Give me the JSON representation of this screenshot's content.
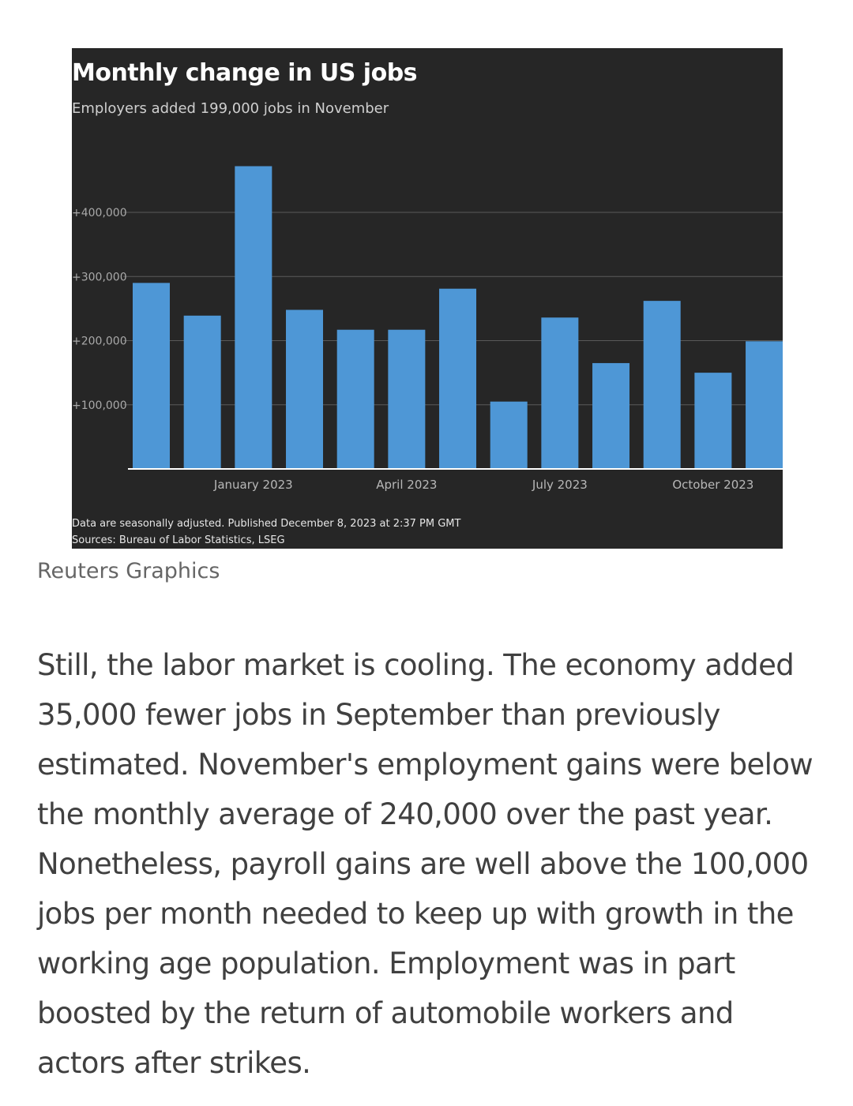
{
  "chart_data": {
    "type": "bar",
    "title": "Monthly change in US jobs",
    "subtitle": "Employers added 199,000 jobs in November",
    "categories": [
      "Nov 2022",
      "Dec 2022",
      "Jan 2023",
      "Feb 2023",
      "Mar 2023",
      "Apr 2023",
      "May 2023",
      "Jun 2023",
      "Jul 2023",
      "Aug 2023",
      "Sep 2023",
      "Oct 2023",
      "Nov 2023"
    ],
    "values": [
      290000,
      239000,
      472000,
      248000,
      217000,
      217000,
      281000,
      105000,
      236000,
      165000,
      262000,
      150000,
      199000
    ],
    "ylim": [
      0,
      480000
    ],
    "y_ticks": [
      {
        "value": 100000,
        "label": "+100,000"
      },
      {
        "value": 200000,
        "label": "+200,000"
      },
      {
        "value": 300000,
        "label": "+300,000"
      },
      {
        "value": 400000,
        "label": "+400,000"
      }
    ],
    "x_ticks": [
      {
        "index": 2,
        "label": "January 2023"
      },
      {
        "index": 5,
        "label": "April 2023"
      },
      {
        "index": 8,
        "label": "July 2023"
      },
      {
        "index": 11,
        "label": "October 2023"
      }
    ],
    "grid": true,
    "colors": {
      "bar": "#4e97d6",
      "background": "#262626",
      "grid": "#5a5a5a",
      "baseline": "#ffffff"
    },
    "note": "Data are seasonally adjusted. Published December 8, 2023 at 2:37 PM GMT",
    "sources": "Sources: Bureau of Labor Statistics, LSEG"
  },
  "credit": "Reuters Graphics",
  "article": {
    "paragraph": "Still, the labor market is cooling. The economy added 35,000 fewer jobs in September than previously estimated. November's employment gains were below the monthly average of 240,000 over the past year. Nonetheless, payroll gains are well above the 100,000 jobs per month needed to keep up with growth in the working age population. Employment was in part boosted by the return of automobile workers and actors after strikes."
  }
}
